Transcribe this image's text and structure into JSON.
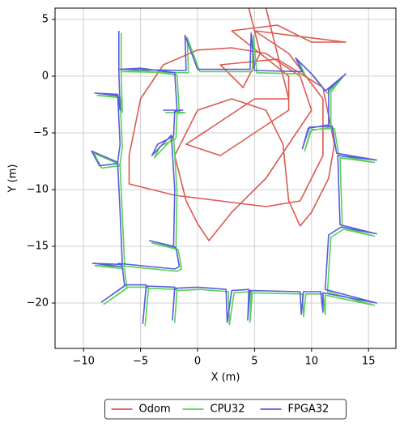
{
  "chart_data": {
    "type": "line",
    "xlabel": "X (m)",
    "ylabel": "Y (m)",
    "xlim": [
      -12.5,
      17.4
    ],
    "ylim": [
      -24,
      6
    ],
    "xticks": [
      {
        "value": -10,
        "label": "−10"
      },
      {
        "value": -5,
        "label": "−5"
      },
      0,
      5,
      10,
      15
    ],
    "yticks": [
      {
        "value": -20,
        "label": "−20"
      },
      {
        "value": -15,
        "label": "−15"
      },
      {
        "value": -10,
        "label": "−10"
      },
      {
        "value": -5,
        "label": "−5"
      },
      0,
      5
    ],
    "grid": true,
    "legend": "bottom",
    "series": [
      {
        "name": "Odom",
        "color": "#dc5a50",
        "x": [
          4.5,
          5.5,
          4,
          2,
          7,
          11,
          12,
          11.5,
          10,
          9,
          8,
          7.5,
          6,
          3,
          0,
          -2,
          -1,
          0,
          1,
          3,
          6,
          8,
          10,
          9,
          6,
          3,
          0,
          -3,
          -5,
          -6,
          -6,
          -2,
          2,
          6,
          9,
          11,
          11,
          8,
          5,
          13,
          10,
          7,
          3,
          8,
          8,
          5,
          2,
          -1,
          2,
          5,
          8,
          6
        ],
        "values": [
          6,
          2,
          -1,
          1,
          1.5,
          -1,
          -6,
          -9,
          -12,
          -13.2,
          -11,
          -6,
          -3,
          -2,
          -3,
          -7,
          -11,
          -13,
          -14.5,
          -12,
          -9,
          -6,
          -3,
          0,
          2,
          2.5,
          2.3,
          1,
          -2,
          -7,
          -9.5,
          -10.5,
          -11,
          -11.5,
          -11,
          -7,
          -2,
          2,
          4,
          3,
          3,
          4.5,
          4,
          0,
          -3,
          -5,
          -7,
          -6,
          -4,
          -2,
          -2,
          6
        ]
      },
      {
        "name": "CPU32",
        "color": "#55d255",
        "x": [
          -6.7,
          -6.7,
          -6.6,
          -6.8,
          -8.8,
          -6.8,
          -6.6,
          -6.8,
          -9.1,
          -8.4,
          -6.8,
          -6.6,
          -6.4,
          -9.0,
          -6.4,
          -6.2,
          -8.2,
          -6.1,
          -4.3,
          -4.6,
          -4.3,
          -1.8,
          -2.0,
          -1.8,
          0.2,
          2.7,
          2.8,
          3.2,
          4.7,
          4.6,
          4.8,
          9.2,
          9.3,
          9.5,
          11.0,
          11.2,
          11.2,
          15.5,
          11.4,
          11.7,
          12.8,
          15.5,
          12.7,
          12.5,
          15.5,
          12.4,
          12.0,
          10.0,
          9.4,
          9.9,
          11.7,
          11.7,
          12.8,
          11.4,
          10.2,
          8.8,
          9.4,
          5.2,
          4.9,
          4.8,
          0.2,
          -0.9,
          -0.8,
          -6.6,
          -4.8,
          -1.8,
          -1.6,
          -2.8,
          -1.1,
          -1.8,
          -1.9,
          -3.3,
          -3.8,
          -2.1,
          -1.8,
          -1.9,
          -4.0,
          -1.7,
          -1.4,
          -1.8,
          -6.8
        ],
        "values": [
          3.8,
          0.3,
          -3.2,
          -1.8,
          -1.7,
          -1.9,
          -6.2,
          -7.8,
          -6.8,
          -8.1,
          -7.9,
          -12.2,
          -16.8,
          -16.7,
          -17.0,
          -18.7,
          -20.1,
          -18.6,
          -18.6,
          -22.0,
          -18.7,
          -18.8,
          -21.7,
          -18.9,
          -18.8,
          -19.0,
          -21.9,
          -19.1,
          -19.0,
          -21.7,
          -19.1,
          -19.2,
          -21.2,
          -19.2,
          -19.2,
          -21.0,
          -19.3,
          -20.2,
          -19.0,
          -14.2,
          -13.5,
          -14.1,
          -13.3,
          -7.2,
          -7.6,
          -7.0,
          -4.6,
          -4.7,
          -6.6,
          -4.8,
          -4.5,
          -1.4,
          0.0,
          -1.5,
          0.0,
          1.4,
          0.2,
          0.3,
          3.6,
          0.4,
          0.4,
          3.4,
          0.3,
          0.4,
          0.5,
          0.1,
          -3.2,
          -3.2,
          -3.2,
          -3.3,
          -5.5,
          -6.2,
          -7.2,
          -5.4,
          -10.2,
          -15.2,
          -14.7,
          -15.3,
          -17.0,
          -17.2,
          -16.7
        ]
      },
      {
        "name": "FPGA32",
        "color": "#5a5ae0",
        "x": [
          -6.9,
          -6.9,
          -6.8,
          -7.0,
          -9.0,
          -7.0,
          -6.8,
          -7.0,
          -9.3,
          -8.6,
          -7.0,
          -6.8,
          -6.6,
          -9.2,
          -6.6,
          -6.4,
          -8.4,
          -6.3,
          -4.5,
          -4.8,
          -4.5,
          -2.0,
          -2.2,
          -2.0,
          0,
          2.5,
          2.6,
          3.0,
          4.5,
          4.4,
          4.6,
          9.0,
          9.1,
          9.3,
          10.8,
          11.0,
          11.0,
          15.7,
          11.2,
          11.5,
          12.6,
          15.7,
          12.5,
          12.3,
          15.7,
          12.2,
          11.8,
          9.8,
          9.2,
          9.7,
          11.5,
          11.5,
          13.0,
          11.2,
          10.0,
          8.6,
          9.2,
          5.0,
          4.7,
          4.6,
          0,
          -1.1,
          -1.0,
          -6.8,
          -5,
          -2,
          -1.8,
          -3.0,
          -1.3,
          -2.0,
          -2.1,
          -3.5,
          -4.0,
          -2.3,
          -2.0,
          -2.1,
          -4.2,
          -1.9,
          -1.6,
          -2,
          -7
        ],
        "values": [
          4.0,
          0.5,
          -3,
          -1.6,
          -1.5,
          -1.7,
          -6,
          -7.6,
          -6.6,
          -7.9,
          -7.7,
          -12,
          -16.6,
          -16.5,
          -16.8,
          -18.5,
          -19.9,
          -18.4,
          -18.4,
          -21.8,
          -18.5,
          -18.6,
          -21.5,
          -18.7,
          -18.6,
          -18.8,
          -21.7,
          -18.9,
          -18.8,
          -21.5,
          -18.9,
          -19.0,
          -21.0,
          -19.0,
          -19.0,
          -20.8,
          -19.1,
          -20.0,
          -18.8,
          -14,
          -13.3,
          -13.9,
          -13.1,
          -7,
          -7.4,
          -6.8,
          -4.4,
          -4.5,
          -6.4,
          -4.6,
          -4.3,
          -1.2,
          0.2,
          -1.3,
          0.2,
          1.6,
          0.4,
          0.5,
          3.8,
          0.6,
          0.6,
          3.6,
          0.5,
          0.6,
          0.7,
          0.3,
          -3,
          -3.0,
          -3.0,
          -3.1,
          -5.3,
          -6.0,
          -7.0,
          -5.2,
          -10,
          -15,
          -14.5,
          -15.1,
          -16.8,
          -17,
          -16.5
        ]
      }
    ]
  }
}
